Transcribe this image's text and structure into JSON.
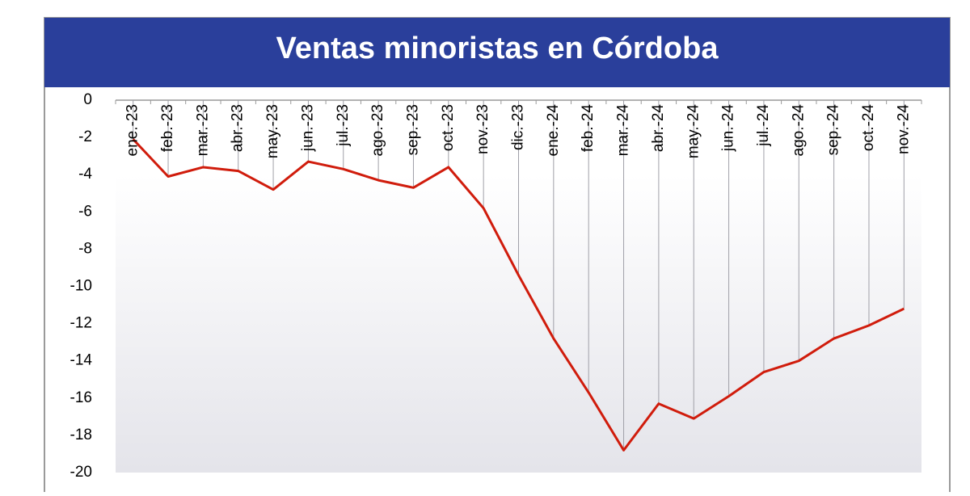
{
  "chart_data": {
    "type": "line",
    "title": "Ventas minoristas en Córdoba",
    "categories": [
      "ene.-23",
      "feb.-23",
      "mar.-23",
      "abr.-23",
      "may.-23",
      "jun.-23",
      "jul.-23",
      "ago.-23",
      "sep.-23",
      "oct.-23",
      "nov.-23",
      "dic.-23",
      "ene.-24",
      "feb.-24",
      "mar.-24",
      "abr.-24",
      "may.-24",
      "jun.-24",
      "jul.-24",
      "ago.-24",
      "sep.-24",
      "oct.-24",
      "nov.-24"
    ],
    "values": [
      -2.1,
      -4.1,
      -3.6,
      -3.8,
      -4.8,
      -3.3,
      -3.7,
      -4.3,
      -4.7,
      -3.6,
      -5.8,
      -9.4,
      -12.8,
      -15.7,
      -18.8,
      -16.3,
      -17.1,
      -15.9,
      -14.6,
      -14.0,
      -12.8,
      -12.1,
      -11.2
    ],
    "color": "#d01c0c",
    "ylim": [
      -20,
      0
    ],
    "yticks": [
      0,
      -2,
      -4,
      -6,
      -8,
      -10,
      -12,
      -14,
      -16,
      -18,
      -20
    ],
    "grid": false
  }
}
